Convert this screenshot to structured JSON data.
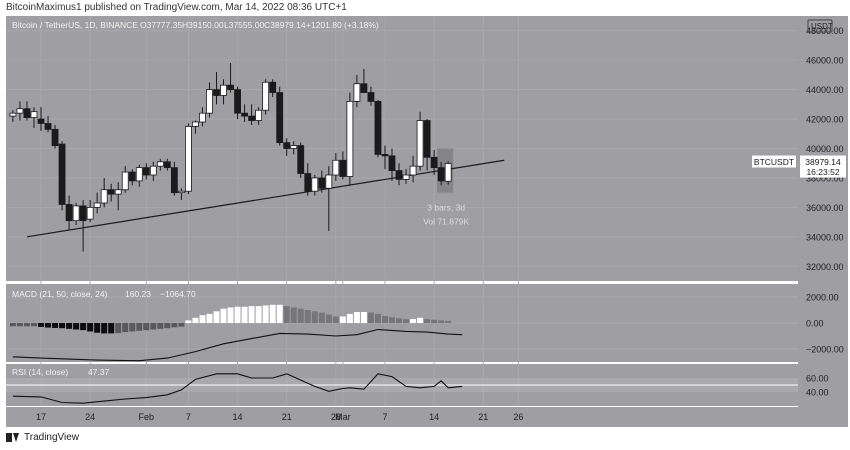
{
  "header": {
    "author": "BitcoinMaximus1",
    "published_text": "published on TradingView.com, Mar 14, 2022 08:36 UTC+1"
  },
  "footer": {
    "brand": "TradingView",
    "logo_icon": "tradingview-logo-icon"
  },
  "colors": {
    "panel_bg": "#9e9ea3",
    "grid": "#a8a8ad",
    "bull": "#ffffff",
    "bear": "#1b1b1d",
    "macd_hist_dark": "#6a6a6e",
    "rsi_band": "#b2b2b6"
  },
  "chart_data": {
    "type": "candlestick",
    "symbol_line": {
      "pair": "Bitcoin / TetherUS, 1D, BINANCE",
      "o": "O37777.35",
      "h": "H39150.00",
      "l": "L37555.00",
      "c": "C38979.14",
      "chg": "+1201.80 (+3.18%)"
    },
    "currency": "USDT",
    "price_axis": {
      "min": 31000,
      "max": 49000,
      "ticks": [
        "48000.00",
        "46000.00",
        "44000.00",
        "42000.00",
        "40000.00",
        "38000.00",
        "36000.00",
        "34000.00",
        "32000.00"
      ]
    },
    "x_axis_ticks": [
      {
        "label": "17",
        "day": 0
      },
      {
        "label": "24",
        "day": 7
      },
      {
        "label": "Feb",
        "day": 15
      },
      {
        "label": "7",
        "day": 21
      },
      {
        "label": "14",
        "day": 28
      },
      {
        "label": "21",
        "day": 35
      },
      {
        "label": "28",
        "day": 42
      },
      {
        "label": "Mar",
        "day": 43
      },
      {
        "label": "7",
        "day": 49
      },
      {
        "label": "14",
        "day": 56
      },
      {
        "label": "21",
        "day": 63
      },
      {
        "label": "26",
        "day": 68
      }
    ],
    "candles": [
      [
        -4,
        42200,
        42600,
        41800,
        42400
      ],
      [
        -3,
        42400,
        43200,
        41900,
        42700
      ],
      [
        -2,
        42700,
        43200,
        41900,
        42100
      ],
      [
        -1,
        42100,
        42800,
        41400,
        42500
      ],
      [
        0,
        42000,
        42800,
        41200,
        41700
      ],
      [
        1,
        41700,
        42200,
        41100,
        41300
      ],
      [
        2,
        41300,
        41600,
        40000,
        40200
      ],
      [
        3,
        40300,
        40500,
        35800,
        36200
      ],
      [
        4,
        36200,
        36800,
        34500,
        35100
      ],
      [
        5,
        35100,
        36300,
        34800,
        36100
      ],
      [
        6,
        36100,
        36500,
        33000,
        35100
      ],
      [
        7,
        35200,
        36500,
        35000,
        36000
      ],
      [
        8,
        36000,
        37000,
        35600,
        36300
      ],
      [
        9,
        36300,
        38000,
        36000,
        37200
      ],
      [
        10,
        37200,
        37600,
        36400,
        36900
      ],
      [
        11,
        36900,
        37700,
        35800,
        37200
      ],
      [
        12,
        37200,
        38800,
        37000,
        38400
      ],
      [
        13,
        38400,
        38600,
        37500,
        37800
      ],
      [
        14,
        37800,
        38900,
        37400,
        38700
      ],
      [
        15,
        38700,
        39000,
        37900,
        38200
      ],
      [
        16,
        38200,
        39100,
        37800,
        38800
      ],
      [
        17,
        38800,
        39300,
        38500,
        39100
      ],
      [
        18,
        39100,
        39300,
        38500,
        38700
      ],
      [
        19,
        38700,
        39100,
        36800,
        37000
      ],
      [
        20,
        37000,
        37300,
        36500,
        37100
      ],
      [
        21,
        37100,
        41700,
        36900,
        41500
      ],
      [
        22,
        41500,
        41900,
        41000,
        41800
      ],
      [
        23,
        41800,
        42800,
        41500,
        42400
      ],
      [
        24,
        42400,
        44500,
        42100,
        44000
      ],
      [
        25,
        44000,
        45200,
        43000,
        43600
      ],
      [
        26,
        43600,
        44700,
        43000,
        44300
      ],
      [
        27,
        44300,
        45800,
        43800,
        44000
      ],
      [
        28,
        44000,
        44200,
        42000,
        42400
      ],
      [
        29,
        42400,
        43000,
        41800,
        42200
      ],
      [
        30,
        42200,
        43000,
        41600,
        41900
      ],
      [
        31,
        41900,
        42800,
        41600,
        42600
      ],
      [
        32,
        42600,
        44700,
        42300,
        44500
      ],
      [
        33,
        44500,
        44700,
        43500,
        43800
      ],
      [
        34,
        43800,
        44200,
        40200,
        40400
      ],
      [
        35,
        40400,
        40700,
        39500,
        40000
      ],
      [
        36,
        40000,
        40500,
        39600,
        40200
      ],
      [
        37,
        40200,
        40400,
        38000,
        38300
      ],
      [
        38,
        38300,
        39000,
        36800,
        37100
      ],
      [
        39,
        37100,
        38200,
        36800,
        38000
      ],
      [
        40,
        38000,
        38500,
        37000,
        37300
      ],
      [
        41,
        37300,
        38800,
        34400,
        38200
      ],
      [
        42,
        38200,
        39700,
        37800,
        39200
      ],
      [
        43,
        39200,
        39800,
        37900,
        38100
      ],
      [
        44,
        38100,
        43800,
        37500,
        43200
      ],
      [
        45,
        43200,
        45000,
        42800,
        44400
      ],
      [
        46,
        44400,
        45400,
        43800,
        43800
      ],
      [
        47,
        43800,
        44200,
        42900,
        43200
      ],
      [
        48,
        43200,
        43300,
        39400,
        39600
      ],
      [
        49,
        39600,
        40200,
        38600,
        39500
      ],
      [
        50,
        39500,
        40000,
        37800,
        38500
      ],
      [
        51,
        38500,
        39000,
        37500,
        37900
      ],
      [
        52,
        37900,
        38600,
        37600,
        38200
      ],
      [
        53,
        38200,
        39500,
        37700,
        38800
      ],
      [
        54,
        38800,
        42500,
        38500,
        41900
      ],
      [
        55,
        41900,
        42000,
        38500,
        39400
      ],
      [
        56,
        39400,
        39900,
        38200,
        38700
      ],
      [
        57,
        38700,
        39100,
        37500,
        37800
      ],
      [
        58,
        37777.35,
        39150,
        37555,
        38979.14
      ]
    ],
    "trendline": {
      "from": [
        -2,
        34000
      ],
      "to": [
        66,
        39200
      ]
    },
    "last_price_label": {
      "symbol": "BTCUSDT",
      "price": "38979.14",
      "countdown": "16:23:52"
    },
    "measure_box": {
      "from_day": 57,
      "to_day": 59,
      "top": 40000,
      "bottom": 37000,
      "label1": "3 bars, 3d",
      "label2": "Vol 71.879K"
    },
    "macd": {
      "label": "MACD (21, 50, close, 24)",
      "value1": "160.23",
      "value2": "−1064.70",
      "ylim": [
        -3000,
        3000
      ],
      "ticks": [
        "2000.00",
        "0.00",
        "−2000.00"
      ],
      "hist": [
        -300,
        -350,
        -380,
        -400,
        -450,
        -500,
        -550,
        -650,
        -750,
        -800,
        -800,
        -780,
        -700,
        -650,
        -600,
        -550,
        -500,
        -450,
        -400,
        -330,
        -280,
        200,
        400,
        600,
        700,
        900,
        1100,
        1200,
        1250,
        1250,
        1300,
        1300,
        1350,
        1400,
        1400,
        1300,
        1200,
        1100,
        1000,
        900,
        800,
        650,
        500,
        500,
        700,
        850,
        850,
        800,
        700,
        550,
        450,
        350,
        300,
        300,
        400,
        300,
        250,
        200,
        150
      ],
      "hist_start_day": 0,
      "line": [
        [
          -4,
          -2600
        ],
        [
          0,
          -2700
        ],
        [
          8,
          -2850
        ],
        [
          14,
          -2900
        ],
        [
          18,
          -2700
        ],
        [
          22,
          -2200
        ],
        [
          26,
          -1600
        ],
        [
          30,
          -1200
        ],
        [
          34,
          -800
        ],
        [
          38,
          -850
        ],
        [
          42,
          -1000
        ],
        [
          45,
          -900
        ],
        [
          48,
          -500
        ],
        [
          52,
          -650
        ],
        [
          55,
          -700
        ],
        [
          58,
          -850
        ],
        [
          60,
          -900
        ]
      ]
    },
    "rsi": {
      "label": "RSI (14, close)",
      "value": "47.37",
      "ylim": [
        20,
        80
      ],
      "band": [
        40,
        60
      ],
      "ticks": [
        "60.00",
        "40.00"
      ],
      "line": [
        [
          -4,
          34
        ],
        [
          0,
          33
        ],
        [
          3,
          25
        ],
        [
          6,
          24
        ],
        [
          9,
          27
        ],
        [
          12,
          30
        ],
        [
          15,
          32
        ],
        [
          18,
          36
        ],
        [
          20,
          43
        ],
        [
          22,
          58
        ],
        [
          25,
          66
        ],
        [
          28,
          66
        ],
        [
          30,
          60
        ],
        [
          33,
          60
        ],
        [
          35,
          66
        ],
        [
          37,
          57
        ],
        [
          39,
          48
        ],
        [
          41,
          41
        ],
        [
          43,
          45
        ],
        [
          44,
          46
        ],
        [
          46,
          44
        ],
        [
          48,
          66
        ],
        [
          50,
          62
        ],
        [
          52,
          48
        ],
        [
          54,
          46
        ],
        [
          56,
          48
        ],
        [
          57,
          56
        ],
        [
          58,
          46
        ],
        [
          60,
          48
        ]
      ]
    }
  }
}
